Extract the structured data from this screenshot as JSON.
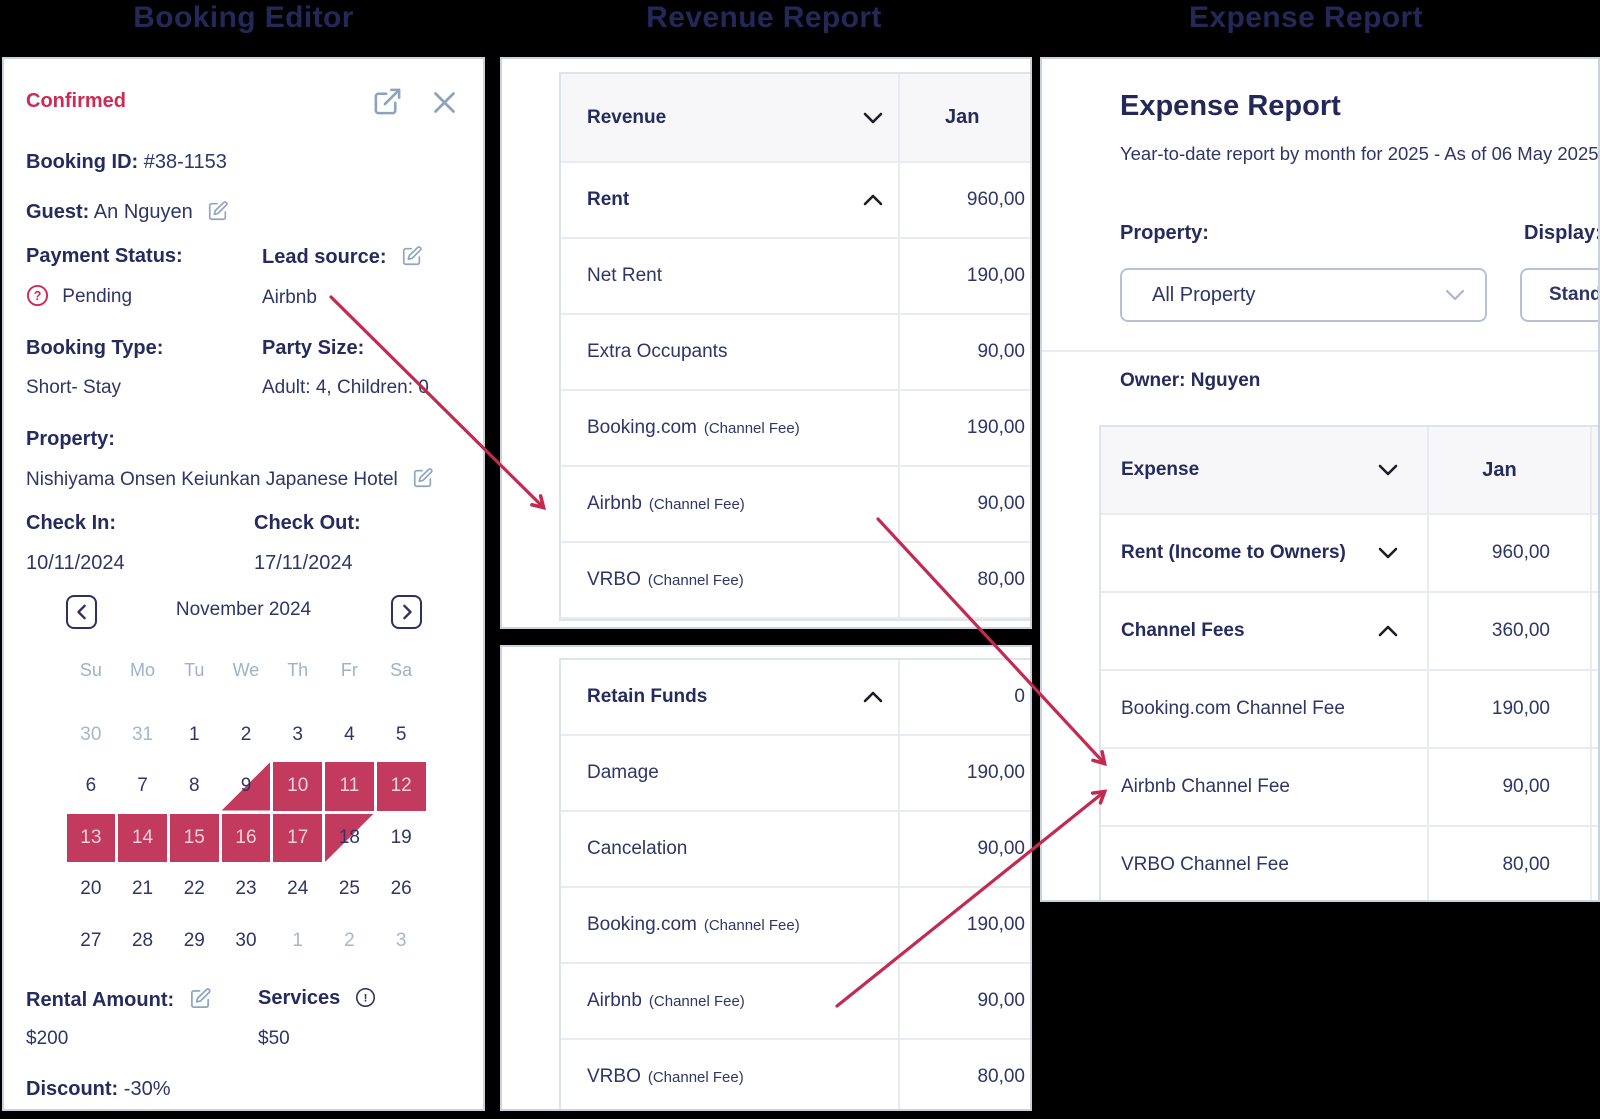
{
  "colors": {
    "accent_red": "#c42a50",
    "selection_red": "#c23a5e",
    "status_red": "#cb2b55",
    "heading_navy": "#232858",
    "text_navy": "#2f3566",
    "icon_blue": "#8ca2bd"
  },
  "headings": {
    "left": "Booking Editor",
    "middle": "Revenue Report",
    "right": "Expense Report"
  },
  "booking": {
    "status": "Confirmed",
    "booking_id_label": "Booking ID:",
    "booking_id": "#38-1153",
    "guest_label": "Guest:",
    "guest": "An Nguyen",
    "payment_status_label": "Payment Status:",
    "payment_status": "Pending",
    "lead_source_label": "Lead source:",
    "lead_source": "Airbnb",
    "booking_type_label": "Booking Type:",
    "booking_type": "Short- Stay",
    "party_size_label": "Party Size:",
    "party_size": "Adult: 4, Children: 0",
    "property_label": "Property:",
    "property": "Nishiyama Onsen Keiunkan Japanese Hotel",
    "check_in_label": "Check In:",
    "check_in": "10/11/2024",
    "check_out_label": "Check Out:",
    "check_out": "17/11/2024",
    "rental_amount_label": "Rental Amount:",
    "rental_amount": "$200",
    "services_label": "Services",
    "services": "$50",
    "discount_label": "Discount:",
    "discount": "-30%",
    "calendar": {
      "month": "November 2024",
      "day_headers": [
        "Su",
        "Mo",
        "Tu",
        "We",
        "Th",
        "Fr",
        "Sa"
      ],
      "weeks": [
        [
          {
            "d": "30",
            "muted": true
          },
          {
            "d": "31",
            "muted": true
          },
          {
            "d": "1"
          },
          {
            "d": "2"
          },
          {
            "d": "3"
          },
          {
            "d": "4"
          },
          {
            "d": "5"
          }
        ],
        [
          {
            "d": "6"
          },
          {
            "d": "7"
          },
          {
            "d": "8"
          },
          {
            "d": "9",
            "tri": "start"
          },
          {
            "d": "10",
            "sel": true
          },
          {
            "d": "11",
            "sel": true
          },
          {
            "d": "12",
            "sel": true
          }
        ],
        [
          {
            "d": "13",
            "sel": true
          },
          {
            "d": "14",
            "sel": true
          },
          {
            "d": "15",
            "sel": true
          },
          {
            "d": "16",
            "sel": true
          },
          {
            "d": "17",
            "sel": true
          },
          {
            "d": "18",
            "tri": "end"
          },
          {
            "d": "19"
          }
        ],
        [
          {
            "d": "20"
          },
          {
            "d": "21"
          },
          {
            "d": "22"
          },
          {
            "d": "23"
          },
          {
            "d": "24"
          },
          {
            "d": "25"
          },
          {
            "d": "26"
          }
        ],
        [
          {
            "d": "27"
          },
          {
            "d": "28"
          },
          {
            "d": "29"
          },
          {
            "d": "30"
          },
          {
            "d": "1",
            "muted": true
          },
          {
            "d": "2",
            "muted": true
          },
          {
            "d": "3",
            "muted": true
          }
        ]
      ]
    }
  },
  "revenue": {
    "header_label": "Revenue",
    "month": "Jan",
    "rows": [
      {
        "label": "Rent",
        "bold": true,
        "chevron": "up",
        "value": "960,00"
      },
      {
        "label": "Net Rent",
        "value": "190,00"
      },
      {
        "label": "Extra Occupants",
        "value": "90,00"
      },
      {
        "label": "Booking.com",
        "suffix": "(Channel Fee)",
        "value": "190,00"
      },
      {
        "label": "Airbnb",
        "suffix": "(Channel Fee)",
        "value": "90,00"
      },
      {
        "label": "VRBO",
        "suffix": "(Channel Fee)",
        "value": "80,00"
      }
    ]
  },
  "retain": {
    "rows": [
      {
        "label": "Retain Funds",
        "bold": true,
        "chevron": "up",
        "value": "0"
      },
      {
        "label": "Damage",
        "value": "190,00"
      },
      {
        "label": "Cancelation",
        "value": "90,00"
      },
      {
        "label": "Booking.com",
        "suffix": "(Channel Fee)",
        "value": "190,00"
      },
      {
        "label": "Airbnb",
        "suffix": "(Channel Fee)",
        "value": "90,00"
      },
      {
        "label": "VRBO",
        "suffix": "(Channel Fee)",
        "value": "80,00"
      }
    ]
  },
  "expense": {
    "title": "Expense Report",
    "subtitle": "Year-to-date report by month for 2025 - As of 06 May 2025",
    "property_label": "Property:",
    "property_value": "All Property",
    "display_label": "Display:",
    "display_value": "Standard",
    "owner": "Owner: Nguyen",
    "header_label": "Expense",
    "month": "Jan",
    "rows": [
      {
        "label": "Rent (Income to Owners)",
        "bold": true,
        "chevron": "down",
        "value": "960,00"
      },
      {
        "label": "Channel Fees",
        "bold": true,
        "chevron": "up",
        "value": "360,00"
      },
      {
        "label": "Booking.com Channel Fee",
        "value": "190,00"
      },
      {
        "label": "Airbnb Channel Fee",
        "value": "90,00"
      },
      {
        "label": "VRBO Channel Fee",
        "value": "80,00"
      }
    ]
  }
}
